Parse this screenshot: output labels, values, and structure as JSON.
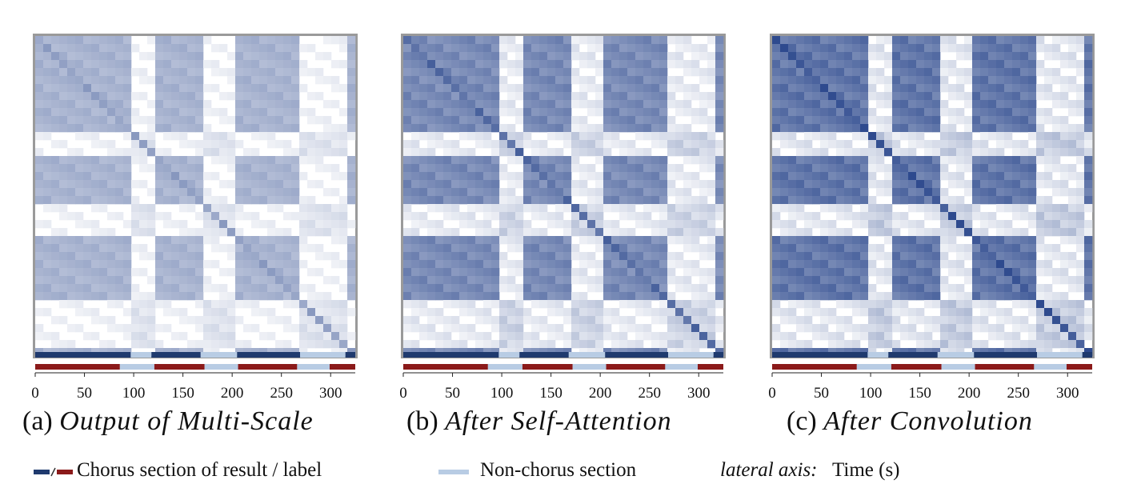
{
  "panels": [
    {
      "id": "a",
      "tag": "(a)",
      "name": "Output of Multi-Scale",
      "intensity": 0.55
    },
    {
      "id": "b",
      "tag": "(b)",
      "name": "After Self-Attention",
      "intensity": 0.85
    },
    {
      "id": "c",
      "tag": "(c)",
      "name": "After Convolution",
      "intensity": 1.0
    }
  ],
  "legend": {
    "chorus": "Chorus section of result / label",
    "nonchorus": "Non-chorus section",
    "axis_label": "lateral axis:",
    "axis_value": "Time (s)"
  },
  "colors": {
    "result_chorus": "#1f3a6e",
    "label_chorus": "#8b1a1a",
    "non_chorus": "#b8cce4",
    "heat_low": "#ffffff",
    "heat_high": "#2e4a8e"
  },
  "chart_data": {
    "type": "heatmap",
    "x_unit": "Time (s)",
    "xlim": [
      0,
      325
    ],
    "ticks": [
      0,
      50,
      100,
      150,
      200,
      250,
      300
    ],
    "tick_labels": [
      "0",
      "50",
      "100",
      "150",
      "200",
      "250",
      "300"
    ],
    "result_segments": [
      {
        "start": 0,
        "end": 97,
        "chorus": true
      },
      {
        "start": 97,
        "end": 118,
        "chorus": false
      },
      {
        "start": 118,
        "end": 168,
        "chorus": true
      },
      {
        "start": 168,
        "end": 205,
        "chorus": false
      },
      {
        "start": 205,
        "end": 269,
        "chorus": true
      },
      {
        "start": 269,
        "end": 315,
        "chorus": false
      },
      {
        "start": 315,
        "end": 325,
        "chorus": true
      }
    ],
    "label_segments": [
      {
        "start": 0,
        "end": 86,
        "chorus": true
      },
      {
        "start": 86,
        "end": 121,
        "chorus": false
      },
      {
        "start": 121,
        "end": 172,
        "chorus": true
      },
      {
        "start": 172,
        "end": 206,
        "chorus": false
      },
      {
        "start": 206,
        "end": 266,
        "chorus": true
      },
      {
        "start": 266,
        "end": 299,
        "chorus": false
      },
      {
        "start": 299,
        "end": 325,
        "chorus": true
      }
    ]
  }
}
